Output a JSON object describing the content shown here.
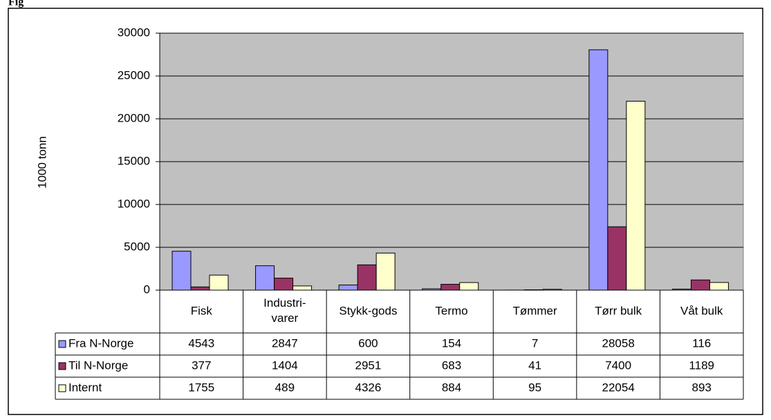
{
  "caption": "Fig",
  "chart_data": {
    "type": "bar",
    "ylabel": "1000 tonn",
    "categories": [
      "Fisk",
      "Industri-varer",
      "Stykk-gods",
      "Termo",
      "Tømmer",
      "Tørr bulk",
      "Våt bulk"
    ],
    "series": [
      {
        "name": "Fra N-Norge",
        "color": "#9999ff",
        "values": [
          4543,
          2847,
          600,
          154,
          7,
          28058,
          116
        ]
      },
      {
        "name": "Til N-Norge",
        "color": "#993366",
        "values": [
          377,
          1404,
          2951,
          683,
          41,
          7400,
          1189
        ]
      },
      {
        "name": "Internt",
        "color": "#ffffcc",
        "values": [
          1755,
          489,
          4326,
          884,
          95,
          22054,
          893
        ]
      }
    ],
    "ylim": [
      0,
      30000
    ],
    "yticks": [
      0,
      5000,
      10000,
      15000,
      20000,
      25000,
      30000
    ],
    "grid": true,
    "plot_background": "#c0c0c0"
  }
}
